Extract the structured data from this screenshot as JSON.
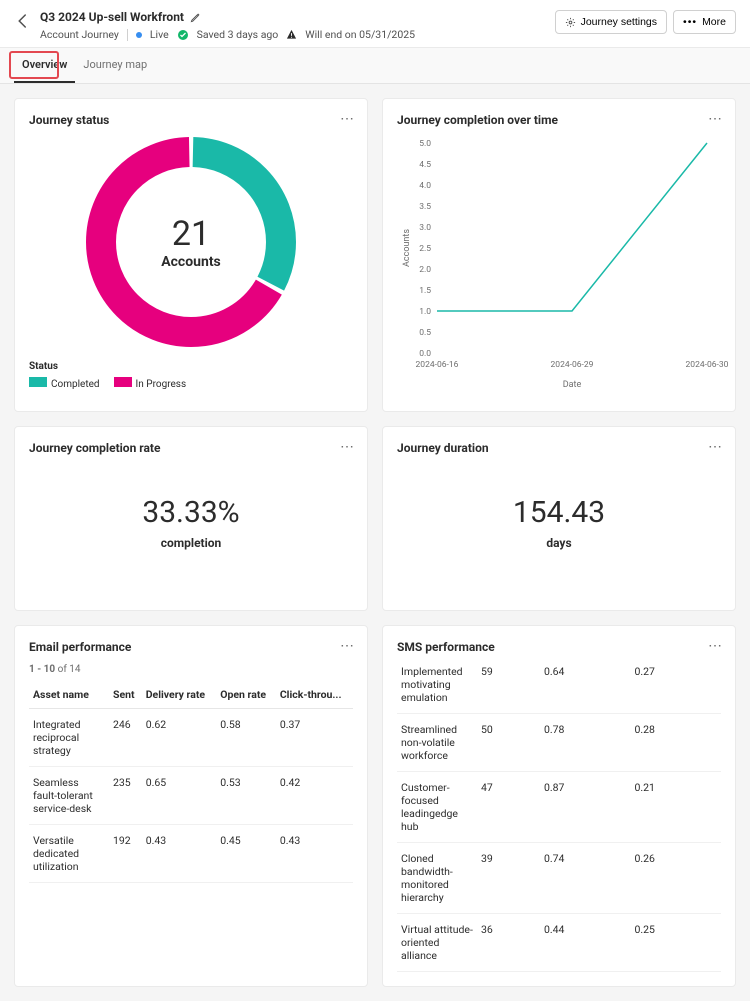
{
  "header": {
    "title": "Q3 2024 Up-sell Workfront",
    "breadcrumb": "Account Journey",
    "status_label": "Live",
    "saved_label": "Saved 3 days ago",
    "end_label": "Will end on 05/31/2025",
    "settings_btn": "Journey settings",
    "more_btn": "More"
  },
  "tabs": {
    "overview": "Overview",
    "map": "Journey map"
  },
  "journey_status": {
    "title": "Journey status",
    "center_value": "21",
    "center_label": "Accounts",
    "legend_title": "Status",
    "legend": [
      {
        "label": "Completed",
        "color": "#1ab9a8"
      },
      {
        "label": "In Progress",
        "color": "#e6007e"
      }
    ],
    "donut": {
      "color_completed": "#1ab9a8",
      "color_inprogress": "#e6007e",
      "completed_pct": 33,
      "stroke_width": 30,
      "radius": 90
    }
  },
  "completion_time": {
    "title": "Journey completion over time",
    "y_label": "Accounts",
    "x_label": "Date",
    "y_ticks": [
      "0.0",
      "0.5",
      "1.0",
      "1.5",
      "2.0",
      "2.5",
      "3.0",
      "3.5",
      "4.0",
      "4.5",
      "5.0"
    ],
    "x_ticks": [
      "2024-06-16",
      "2024-06-29",
      "2024-06-30"
    ],
    "line_color": "#1ab9a8",
    "points": [
      {
        "x": 0,
        "y": 1
      },
      {
        "x": 1,
        "y": 1
      },
      {
        "x": 2,
        "y": 5
      }
    ],
    "ylim": [
      0,
      5
    ]
  },
  "completion_rate": {
    "title": "Journey completion rate",
    "value": "33.33%",
    "unit": "completion"
  },
  "duration": {
    "title": "Journey duration",
    "value": "154.43",
    "unit": "days"
  },
  "email": {
    "title": "Email performance",
    "range_prefix": "1 - 10",
    "range_of": "of",
    "range_total": "14",
    "columns": [
      "Asset name",
      "Sent",
      "Delivery rate",
      "Open rate",
      "Click-throu..."
    ],
    "rows": [
      [
        "Integrated reciprocal strategy",
        "246",
        "0.62",
        "0.58",
        "0.37"
      ],
      [
        "Seamless fault-tolerant service-desk",
        "235",
        "0.65",
        "0.53",
        "0.42"
      ],
      [
        "Versatile dedicated utilization",
        "192",
        "0.43",
        "0.45",
        "0.43"
      ]
    ]
  },
  "sms": {
    "title": "SMS performance",
    "rows": [
      [
        "Implemented motivating emulation",
        "59",
        "0.64",
        "0.27"
      ],
      [
        "Streamlined non-volatile workforce",
        "50",
        "0.78",
        "0.28"
      ],
      [
        "Customer-focused leadingedge hub",
        "47",
        "0.87",
        "0.21"
      ],
      [
        "Cloned bandwidth-monitored hierarchy",
        "39",
        "0.74",
        "0.26"
      ],
      [
        "Virtual attitude-oriented alliance",
        "36",
        "0.44",
        "0.25"
      ]
    ]
  }
}
